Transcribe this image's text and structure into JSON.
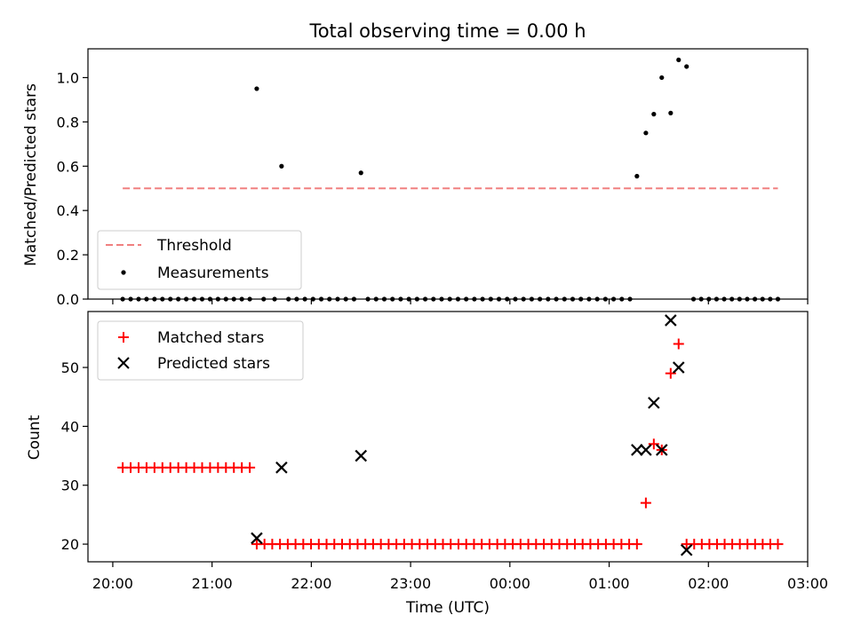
{
  "chart_data": [
    {
      "type": "scatter",
      "title": "Total observing time = 0.00 h",
      "ylabel": "Matched/Predicted stars",
      "xlabel": "",
      "x_unit": "hours since 20:00 UTC",
      "xlim": [
        -0.25,
        7.0
      ],
      "ylim": [
        0,
        1.13
      ],
      "yticks": [
        0.0,
        0.2,
        0.4,
        0.6,
        0.8,
        1.0
      ],
      "ytick_labels": [
        "0.0",
        "0.2",
        "0.4",
        "0.6",
        "0.8",
        "1.0"
      ],
      "grid": false,
      "legend_position": "lower-left",
      "legend": [
        "Threshold",
        "Measurements"
      ],
      "threshold": {
        "name": "Threshold",
        "y": 0.5,
        "x_start": 0.1,
        "x_end": 6.7,
        "color": "#f08080"
      },
      "measurements": {
        "name": "Measurements",
        "color": "#000000",
        "nonzero": [
          [
            1.45,
            0.95
          ],
          [
            1.7,
            0.6
          ],
          [
            2.5,
            0.57
          ],
          [
            5.28,
            0.555
          ],
          [
            5.37,
            0.75
          ],
          [
            5.45,
            0.835
          ],
          [
            5.53,
            1.0
          ],
          [
            5.62,
            0.84
          ],
          [
            5.7,
            1.08
          ],
          [
            5.78,
            1.05
          ]
        ],
        "zero_runs": [
          {
            "start": 0.1,
            "end": 1.38,
            "count": 17
          },
          {
            "start": 1.52,
            "end": 1.63,
            "count": 2
          },
          {
            "start": 1.77,
            "end": 2.43,
            "count": 9
          },
          {
            "start": 2.57,
            "end": 5.21,
            "count": 33
          },
          {
            "start": 5.85,
            "end": 6.7,
            "count": 12
          }
        ]
      }
    },
    {
      "type": "scatter",
      "xlabel": "Time (UTC)",
      "ylabel": "Count",
      "xlim": [
        -0.25,
        7.0
      ],
      "ylim": [
        17,
        59.5
      ],
      "yticks": [
        20,
        30,
        40,
        50
      ],
      "ytick_labels": [
        "20",
        "30",
        "40",
        "50"
      ],
      "xticks": [
        0,
        1,
        2,
        3,
        4,
        5,
        6,
        7
      ],
      "xtick_labels": [
        "20:00",
        "21:00",
        "22:00",
        "23:00",
        "00:00",
        "01:00",
        "02:00",
        "03:00"
      ],
      "grid": false,
      "legend_position": "top-left",
      "legend": [
        "Matched stars",
        "Predicted stars"
      ],
      "matched": {
        "name": "Matched stars",
        "color": "#ff0000",
        "marker": "plus",
        "runs": [
          {
            "start": 0.1,
            "end": 1.38,
            "count": 17,
            "y": 33
          },
          {
            "start": 1.45,
            "end": 5.28,
            "count": 50,
            "y": 20
          },
          {
            "start": 5.78,
            "end": 6.7,
            "count": 13,
            "y": 20
          }
        ],
        "points": [
          [
            5.37,
            27
          ],
          [
            5.45,
            37
          ],
          [
            5.53,
            36
          ],
          [
            5.62,
            49
          ],
          [
            5.7,
            54
          ]
        ]
      },
      "predicted": {
        "name": "Predicted stars",
        "color": "#000000",
        "marker": "x",
        "points": [
          [
            1.45,
            21
          ],
          [
            1.7,
            33
          ],
          [
            2.5,
            35
          ],
          [
            5.28,
            36
          ],
          [
            5.37,
            36
          ],
          [
            5.45,
            44
          ],
          [
            5.53,
            36
          ],
          [
            5.62,
            58
          ],
          [
            5.7,
            50
          ],
          [
            5.78,
            19
          ]
        ]
      }
    }
  ]
}
